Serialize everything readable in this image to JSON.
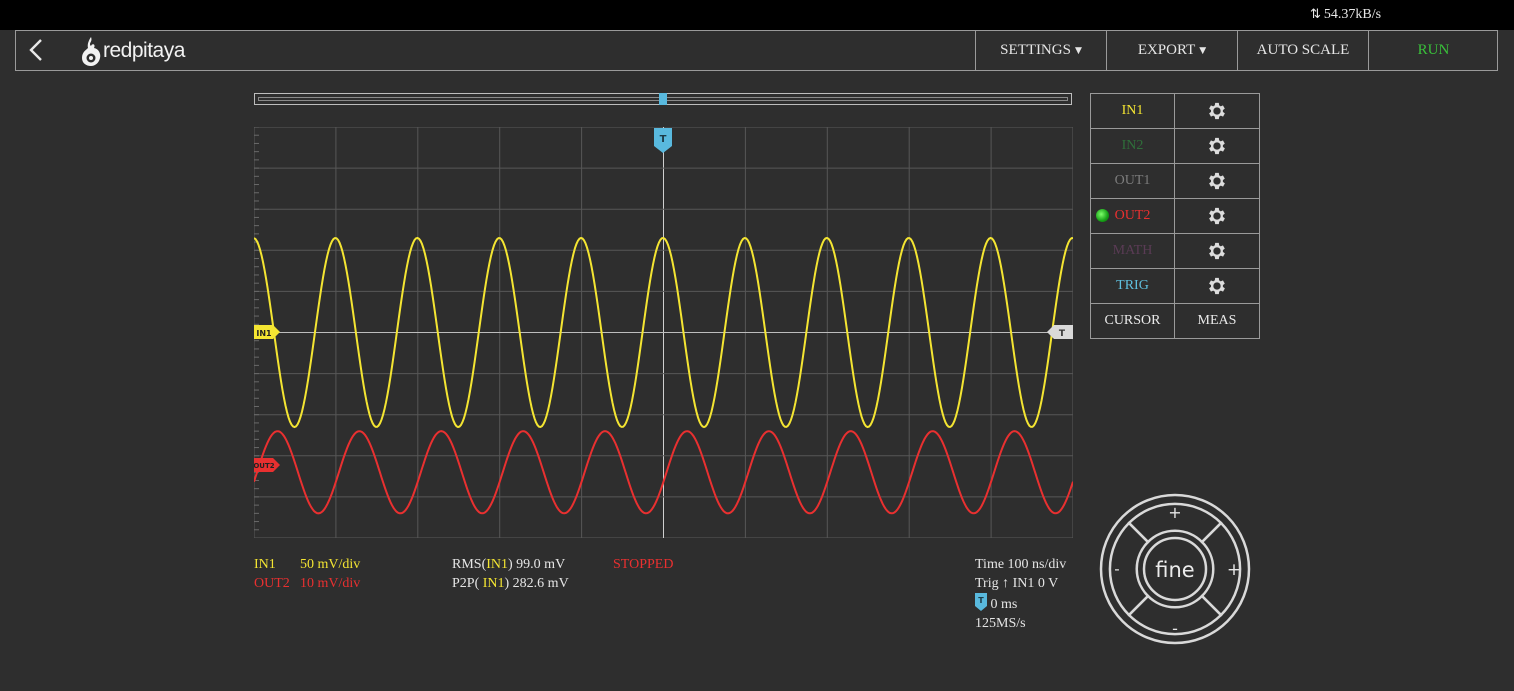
{
  "status_bar": {
    "transfer_rate": "54.37kB/s"
  },
  "nav": {
    "back_icon": "chevron-left-icon",
    "logo_text": "redpitaya",
    "buttons": {
      "settings": "SETTINGS",
      "export": "EXPORT",
      "auto_scale": "AUTO SCALE",
      "run": "RUN"
    }
  },
  "channels": [
    {
      "label": "IN1",
      "color": "#f4e532"
    },
    {
      "label": "IN2",
      "color": "#2f6f3a"
    },
    {
      "label": "OUT1",
      "color": "#7c7c7c"
    },
    {
      "label": "OUT2",
      "color": "#e93030",
      "active_indicator": true
    },
    {
      "label": "MATH",
      "color": "#5a3b55"
    },
    {
      "label": "TRIG",
      "color": "#5fc0df"
    }
  ],
  "tools": {
    "cursor": "CURSOR",
    "meas": "MEAS"
  },
  "plot": {
    "markers": {
      "in1": "IN1",
      "out2": "OUT2",
      "trigger": "T"
    },
    "grid": {
      "x_divisions": 10,
      "y_divisions": 10
    },
    "traces": [
      {
        "name": "IN1",
        "color": "#f4e532",
        "cycles_visible": 10,
        "amplitude_div": 2.3,
        "offset_div": 0
      },
      {
        "name": "OUT2",
        "color": "#e93030",
        "cycles_visible": 10,
        "amplitude_div": 1.0,
        "offset_div": -3.4
      }
    ]
  },
  "info": {
    "ch1": {
      "name": "IN1",
      "scale": "50 mV/div"
    },
    "ch2": {
      "name": "OUT2",
      "scale": "10 mV/div"
    },
    "meas1": {
      "prefix": "RMS(",
      "channel": "IN1",
      "value": ") 99.0  mV"
    },
    "meas2": {
      "prefix": "P2P( ",
      "channel": "IN1",
      "value": ") 282.6  mV"
    },
    "state": "STOPPED",
    "time": "Time  100  ns/div",
    "trig": "Trig",
    "trig_arrow": "↑",
    "trig_source": "IN1 0 V",
    "trig_delay": "0 ms",
    "sample_rate": "125MS/s"
  },
  "wheel": {
    "center": "fine",
    "top": "+",
    "bottom": "-",
    "left": "-",
    "right": "+"
  }
}
